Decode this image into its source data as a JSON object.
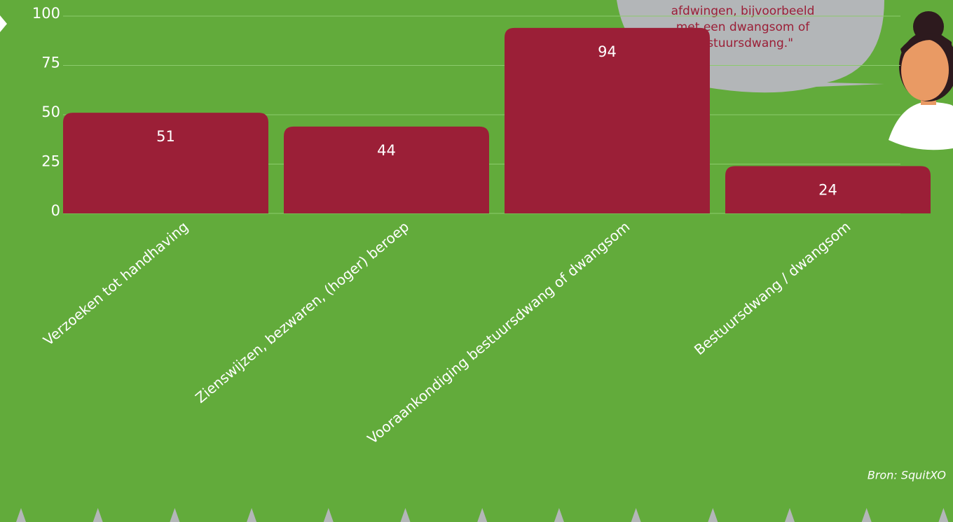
{
  "chart_data": {
    "type": "bar",
    "categories": [
      "Verzoeken tot handhaving",
      "Zienswijzen, bezwaren, (hoger) beroep",
      "Vooraankondiging bestuursdwang of dwangsom",
      "Bestuursdwang / dwangsom"
    ],
    "values": [
      51,
      44,
      94,
      24
    ],
    "color": "#9b1f37",
    "ylim": [
      0,
      100
    ],
    "yticks": [
      0,
      25,
      50,
      75,
      100
    ],
    "grid": true,
    "annotation": [
      "afdwingen, bijvoorbeeld",
      "met een dwangsom of",
      "bestuursdwang.\""
    ],
    "source": "Bron: SquitXO"
  }
}
